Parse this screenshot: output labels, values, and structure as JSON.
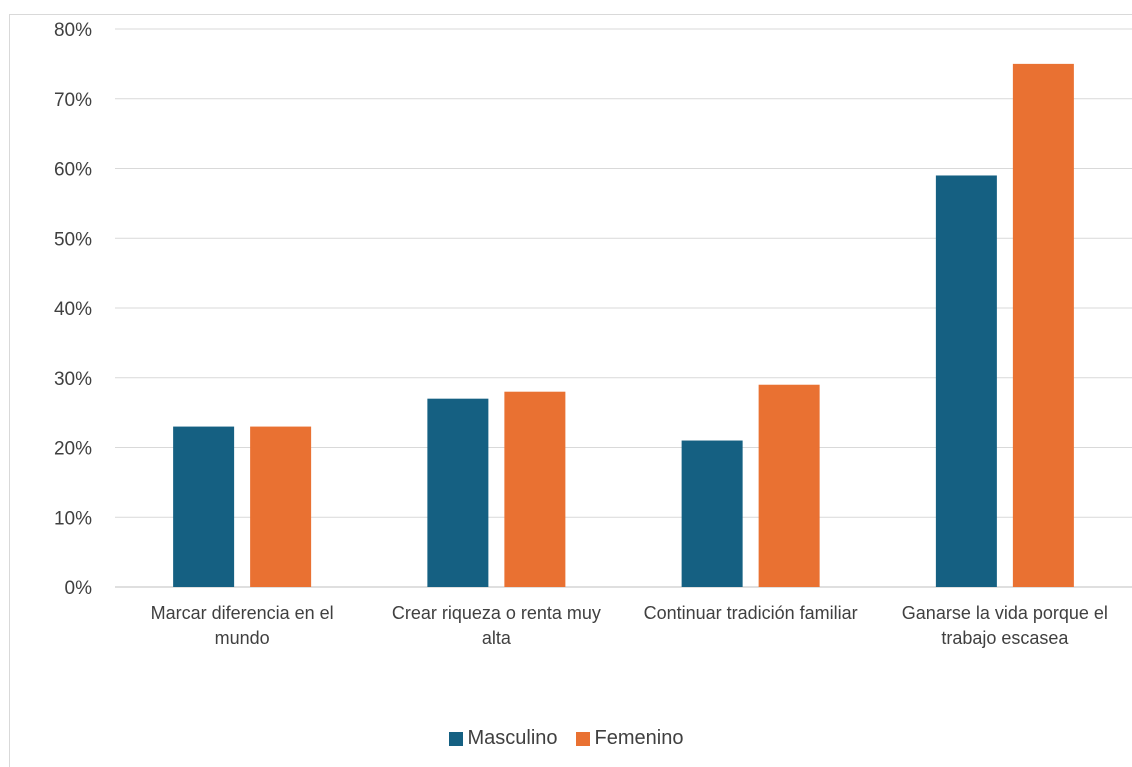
{
  "chart_data": {
    "type": "bar",
    "title": "",
    "xlabel": "",
    "ylabel": "",
    "categories": [
      [
        "Marcar diferencia en el",
        "mundo"
      ],
      [
        "Crear riqueza o  renta muy",
        "alta"
      ],
      [
        "Continuar tradición familiar"
      ],
      [
        "Ganarse la vida porque el",
        "trabajo escasea"
      ]
    ],
    "series": [
      {
        "name": "Masculino",
        "color": "#156082",
        "values": [
          0.23,
          0.27,
          0.21,
          0.59
        ]
      },
      {
        "name": "Femenino",
        "color": "#E97132",
        "values": [
          0.23,
          0.28,
          0.29,
          0.75
        ]
      }
    ],
    "ylim": [
      0,
      0.8
    ],
    "yticks": [
      "0%",
      "10%",
      "20%",
      "30%",
      "40%",
      "50%",
      "60%",
      "70%",
      "80%"
    ],
    "grid": true,
    "legend_position": "bottom"
  }
}
